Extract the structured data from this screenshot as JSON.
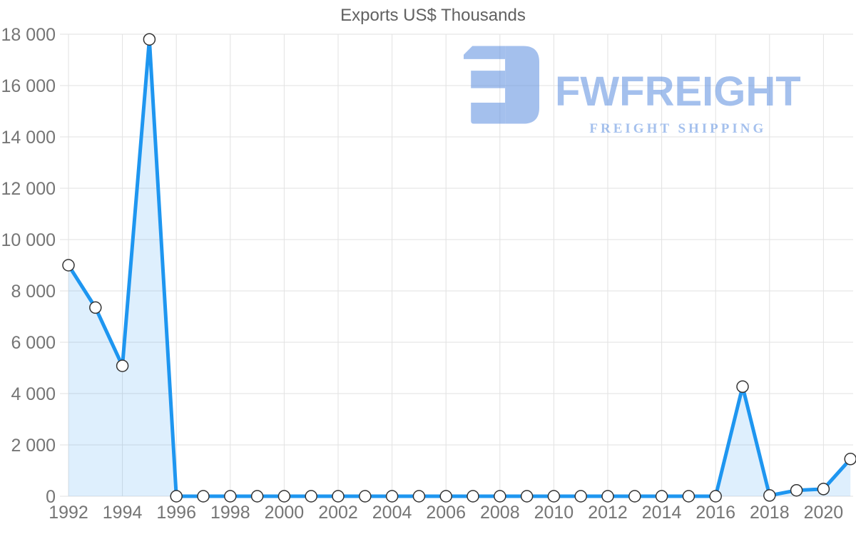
{
  "title": "Exports US$ Thousands",
  "watermark": {
    "brand": "FWFREIGHT",
    "tagline": "FREIGHT SHIPPING",
    "color": "#5b8ee0"
  },
  "chart_data": {
    "type": "area",
    "title": "Exports US$ Thousands",
    "x": [
      1992,
      1993,
      1994,
      1995,
      1996,
      1997,
      1998,
      1999,
      2000,
      2001,
      2002,
      2003,
      2004,
      2005,
      2006,
      2007,
      2008,
      2009,
      2010,
      2011,
      2012,
      2013,
      2014,
      2015,
      2016,
      2017,
      2018,
      2019,
      2020,
      2021
    ],
    "values": [
      9000,
      7350,
      5080,
      17800,
      0,
      0,
      0,
      0,
      0,
      0,
      0,
      0,
      0,
      0,
      0,
      0,
      0,
      0,
      0,
      0,
      0,
      0,
      0,
      0,
      0,
      4270,
      30,
      230,
      280,
      1450
    ],
    "xlabel": "",
    "ylabel": "",
    "ylim": [
      0,
      18000
    ],
    "ytick_step": 2000,
    "xtick_step": 2,
    "ytick_labels": [
      "0",
      "2 000",
      "4 000",
      "6 000",
      "8 000",
      "10 000",
      "12 000",
      "14 000",
      "16 000",
      "18 000"
    ],
    "xtick_labels": [
      "1992",
      "1994",
      "1996",
      "1998",
      "2000",
      "2002",
      "2004",
      "2006",
      "2008",
      "2010",
      "2012",
      "2014",
      "2016",
      "2018",
      "2020"
    ],
    "grid": true,
    "legend": false,
    "marker_shape": "circle-open",
    "line_color": "#1e96f0",
    "fill_color": "rgba(33,150,243,0.15)",
    "marker_fill": "#ffffff",
    "marker_stroke": "#333333",
    "grid_color": "#e2e2e2",
    "axis_label_color": "#757575",
    "title_color": "#616161"
  }
}
